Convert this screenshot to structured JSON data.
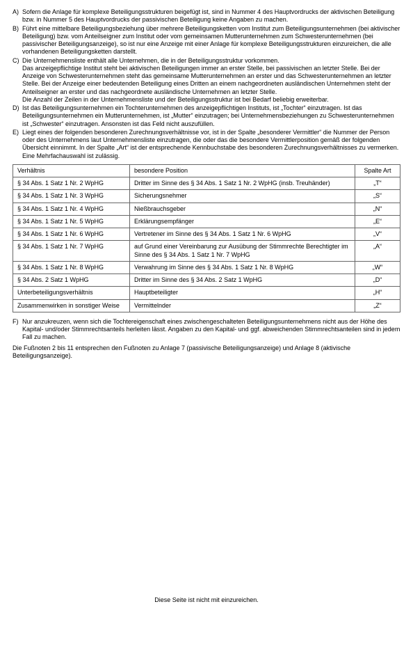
{
  "items": [
    {
      "marker": "A)",
      "text": "Sofern die Anlage für komplexe Beteiligungsstrukturen beigefügt ist, sind in Nummer 4 des Hauptvordrucks der aktivischen Beteiligung bzw. in Nummer 5 des Hauptvordrucks der passivischen Beteiligung keine Angaben zu machen."
    },
    {
      "marker": "B)",
      "text": "Führt eine mittelbare Beteiligungsbeziehung über mehrere Beteiligungsketten vom Institut zum Beteiligungsunternehmen (bei aktivischer Beteiligung) bzw. vom Anteilseigner zum Institut oder vom gemeinsamen Mutterunternehmen zum Schwesterunternehmen (bei passivischer Beteiligungsanzeige), so ist nur eine Anzeige mit einer Anlage für komplexe Beteiligungsstrukturen einzureichen, die alle vorhandenen Beteiligungsketten darstellt."
    },
    {
      "marker": "C)",
      "text": "Die Unternehmensliste enthält alle Unternehmen, die in der Beteiligungsstruktur vorkommen.\nDas anzeigepflichtige Institut steht bei aktivischen Beteiligungen immer an erster Stelle, bei passivischen an letzter Stelle. Bei der Anzeige von Schwesterunternehmen steht das gemeinsame Mutterunternehmen an erster und das Schwesterunternehmen an letzter Stelle. Bei der Anzeige einer bedeutenden Beteiligung eines Dritten an einem nachgeordneten ausländischen Unternehmen steht der Anteilseigner an erster und das nachgeordnete ausländische Unternehmen an letzter Stelle.\nDie Anzahl der Zeilen in der Unternehmensliste und der Beteiligungsstruktur ist bei Bedarf beliebig erweiterbar."
    },
    {
      "marker": "D)",
      "text": "Ist das Beteiligungsunternehmen ein Tochterunternehmen des anzeigepflichtigen Instituts, ist „Tochter“ einzutragen. Ist das Beteiligungsunternehmen ein Mutterunternehmen, ist „Mutter“ einzutragen; bei Unternehmensbeziehungen zu Schwesterunternehmen ist „Schwester“ einzutragen. Ansonsten ist das Feld nicht auszufüllen."
    },
    {
      "marker": "E)",
      "text": "Liegt eines der folgenden besonderen Zurechnungsverhältnisse vor, ist in der Spalte „besonderer Vermittler“ die Nummer der Person oder des Unternehmens laut Unternehmensliste einzutragen, die oder das die besondere Vermittlerposition gemäß der folgenden Übersicht einnimmt. In der Spalte „Art“ ist der entsprechende Kennbuchstabe des besonderen Zurechnungsverhältnisses zu vermerken. Eine Mehrfachauswahl ist zulässig."
    }
  ],
  "table": {
    "headers": {
      "c1": "Verhältnis",
      "c2": "besondere Position",
      "c3": "Spalte Art"
    },
    "rows": [
      {
        "c1": "§ 34 Abs. 1 Satz 1 Nr. 2 WpHG",
        "c2": "Dritter im Sinne des § 34 Abs. 1 Satz 1 Nr. 2 WpHG (insb. Treuhänder)",
        "c3": "„T“"
      },
      {
        "c1": "§ 34 Abs. 1 Satz 1 Nr. 3 WpHG",
        "c2": "Sicherungsnehmer",
        "c3": "„S“"
      },
      {
        "c1": "§ 34 Abs. 1 Satz 1 Nr. 4 WpHG",
        "c2": "Nießbrauchsgeber",
        "c3": "„N“"
      },
      {
        "c1": "§ 34 Abs. 1 Satz 1 Nr. 5 WpHG",
        "c2": "Erklärungsempfänger",
        "c3": "„E“"
      },
      {
        "c1": "§ 34 Abs. 1 Satz 1 Nr. 6 WpHG",
        "c2": "Vertretener im Sinne des § 34 Abs. 1 Satz 1 Nr. 6 WpHG",
        "c3": "„V“"
      },
      {
        "c1": "§ 34 Abs. 1 Satz 1 Nr. 7 WpHG",
        "c2": "auf Grund einer Vereinbarung zur Ausübung der Stimmrechte Berechtigter im Sinne des § 34 Abs. 1 Satz 1 Nr. 7 WpHG",
        "c3": "„A“"
      },
      {
        "c1": "§ 34 Abs. 1 Satz 1 Nr. 8 WpHG",
        "c2": "Verwahrung im Sinne des § 34 Abs. 1 Satz 1 Nr. 8 WpHG",
        "c3": "„W“"
      },
      {
        "c1": "§ 34 Abs. 2 Satz 1 WpHG",
        "c2": "Dritter im Sinne des § 34 Abs. 2 Satz 1 WpHG",
        "c3": "„D“"
      },
      {
        "c1": "Unterbeteiligungsverhältnis",
        "c2": "Hauptbeteiligter",
        "c3": "„H“"
      },
      {
        "c1": "Zusammenwirken in sonstiger Weise",
        "c2": "Vermittelnder",
        "c3": "„Z“"
      }
    ]
  },
  "itemF": {
    "marker": "F)",
    "text": "Nur anzukreuzen, wenn sich die Tochtereigenschaft eines zwischengeschalteten Beteiligungsunternehmens nicht aus der Höhe des Kapital- und/oder Stimmrechtsanteils herleiten lässt. Angaben zu den Kapital- und ggf. abweichenden Stimmrechtsanteilen sind in jedem Fall zu machen."
  },
  "footnote_para": "Die Fußnoten 2 bis 11 entsprechen den Fußnoten zu Anlage 7 (passivische Beteiligungsanzeige) und Anlage 8 (aktivische Beteiligungsanzeige).",
  "footer": "Diese Seite ist nicht mit einzureichen."
}
